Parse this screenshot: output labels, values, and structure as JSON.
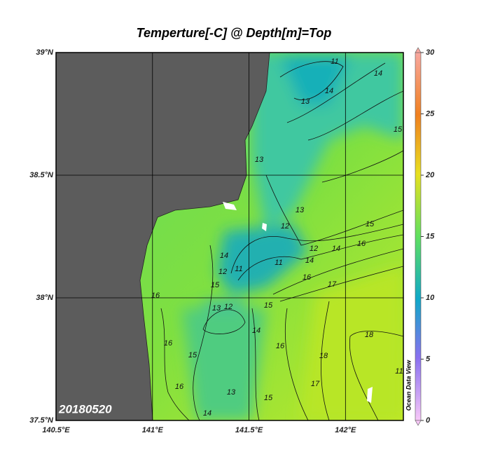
{
  "map": {
    "title": "Temperture[-C] @ Depth[m]=Top",
    "date": "20180520",
    "watermark": "Ocean Data View",
    "lonlim": [
      140.5,
      142.3
    ],
    "latlim": [
      37.5,
      39
    ],
    "lonticks": [
      {
        "value": 140.5,
        "label": "140.5°E"
      },
      {
        "value": 141,
        "label": "141°E"
      },
      {
        "value": 141.5,
        "label": "141.5°E"
      },
      {
        "value": 142,
        "label": "142°E"
      }
    ],
    "latticks": [
      {
        "value": 37.5,
        "label": "37.5°N"
      },
      {
        "value": 38,
        "label": "38°N"
      },
      {
        "value": 38.5,
        "label": "38.5°N"
      },
      {
        "value": 39,
        "label": "39°N"
      }
    ],
    "colorbar": {
      "lim": [
        0,
        30
      ],
      "ticks": [
        0,
        5,
        10,
        15,
        20,
        25,
        30
      ]
    },
    "contour_labels": [
      11,
      14,
      13,
      14,
      15,
      13,
      13,
      12,
      15,
      16,
      14,
      12,
      11,
      11,
      12,
      14,
      14,
      16,
      17,
      15,
      13,
      12,
      15,
      14,
      16,
      18,
      18,
      17,
      15,
      13,
      16,
      15,
      16,
      16,
      14,
      11
    ]
  }
}
